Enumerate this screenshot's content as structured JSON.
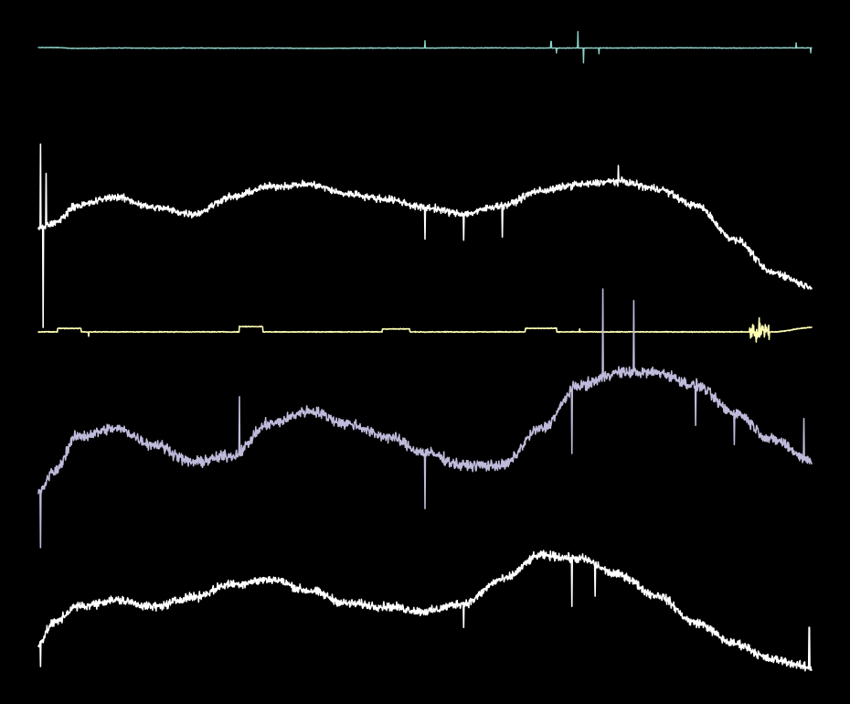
{
  "chart_data": {
    "type": "line",
    "title": "",
    "xlabel": "",
    "ylabel": "",
    "axes_visible": false,
    "grid": false,
    "legend": "none",
    "x": [
      0,
      0.02,
      0.05,
      0.1,
      0.15,
      0.2,
      0.25,
      0.3,
      0.35,
      0.4,
      0.45,
      0.5,
      0.55,
      0.6,
      0.65,
      0.7,
      0.75,
      0.8,
      0.85,
      0.9,
      0.95,
      1.0
    ],
    "series": [
      {
        "channel": 1,
        "color": "#8dd3c7",
        "values": [
          0.0,
          0.0,
          -0.05,
          -0.03,
          -0.04,
          -0.03,
          -0.04,
          -0.03,
          -0.05,
          -0.04,
          -0.03,
          -0.03,
          -0.02,
          -0.02,
          -0.03,
          -0.03,
          -0.03,
          -0.02,
          -0.02,
          -0.03,
          -0.02,
          -0.02
        ],
        "noise": 0.03,
        "spikes": [
          [
            0.5,
            0.45
          ],
          [
            0.663,
            0.4
          ],
          [
            0.67,
            -0.3
          ],
          [
            0.698,
            1.0
          ],
          [
            0.705,
            -0.9
          ],
          [
            0.725,
            -0.35
          ],
          [
            0.98,
            0.3
          ],
          [
            0.999,
            -0.3
          ]
        ]
      },
      {
        "channel": 2,
        "color": "#ffffff",
        "values": [
          0.0,
          0.05,
          0.22,
          0.3,
          0.2,
          0.14,
          0.3,
          0.4,
          0.42,
          0.33,
          0.28,
          0.2,
          0.14,
          0.22,
          0.36,
          0.42,
          0.45,
          0.38,
          0.22,
          -0.1,
          -0.42,
          -0.55
        ],
        "noise": 0.05,
        "spikes": [
          [
            0.003,
            0.8
          ],
          [
            0.006,
            -0.95
          ],
          [
            0.01,
            0.5
          ],
          [
            0.5,
            -0.3
          ],
          [
            0.55,
            -0.25
          ],
          [
            0.6,
            -0.3
          ],
          [
            0.75,
            0.15
          ]
        ]
      },
      {
        "channel": 3,
        "color": "#ffffb3",
        "values": [
          0,
          0,
          0,
          0,
          0,
          0,
          0,
          0,
          0,
          0,
          0,
          0,
          0,
          0,
          0,
          0,
          0,
          0,
          0,
          0,
          0,
          0.15
        ],
        "noise": 0.02,
        "steps": [
          [
            0.025,
            0.055,
            0.12
          ],
          [
            0.26,
            0.29,
            0.18
          ],
          [
            0.445,
            0.48,
            0.1
          ],
          [
            0.63,
            0.67,
            0.12
          ],
          [
            0.92,
            0.95,
            0.0
          ]
        ],
        "bursts": [
          [
            0.92,
            0.945,
            0.6
          ]
        ],
        "spikes": [
          [
            0.065,
            -0.15
          ],
          [
            0.7,
            0.1
          ]
        ]
      },
      {
        "channel": 4,
        "color": "#bebada",
        "values": [
          -0.05,
          0.08,
          0.3,
          0.35,
          0.25,
          0.14,
          0.18,
          0.38,
          0.46,
          0.38,
          0.3,
          0.2,
          0.12,
          0.12,
          0.35,
          0.62,
          0.7,
          0.7,
          0.62,
          0.45,
          0.28,
          0.15
        ],
        "noise": 0.05,
        "spikes": [
          [
            0.003,
            -0.35
          ],
          [
            0.26,
            0.35
          ],
          [
            0.5,
            0.25
          ],
          [
            0.5,
            -0.35
          ],
          [
            0.69,
            0.75
          ],
          [
            0.69,
            -0.4
          ],
          [
            0.73,
            0.55
          ],
          [
            0.77,
            0.45
          ],
          [
            0.85,
            -0.25
          ],
          [
            0.9,
            -0.2
          ],
          [
            0.99,
            0.25
          ]
        ]
      },
      {
        "channel": 5,
        "color": "#ffffff",
        "values": [
          -0.05,
          0.08,
          0.18,
          0.22,
          0.18,
          0.24,
          0.32,
          0.35,
          0.28,
          0.2,
          0.18,
          0.15,
          0.2,
          0.35,
          0.5,
          0.48,
          0.38,
          0.25,
          0.08,
          -0.05,
          -0.15,
          -0.2
        ],
        "noise": 0.04,
        "spikes": [
          [
            0.003,
            -0.15
          ],
          [
            0.55,
            -0.15
          ],
          [
            0.69,
            0.4
          ],
          [
            0.69,
            -0.3
          ],
          [
            0.72,
            -0.2
          ],
          [
            0.997,
            0.25
          ]
        ]
      }
    ]
  }
}
